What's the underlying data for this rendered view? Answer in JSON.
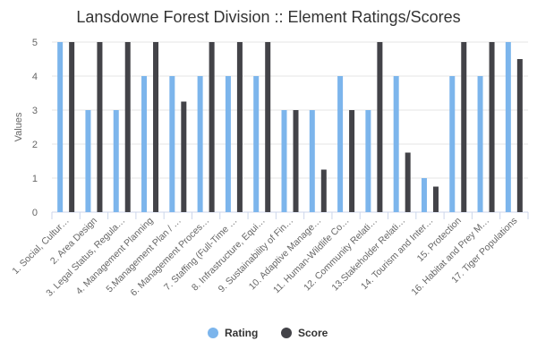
{
  "chart_data": {
    "type": "bar",
    "title": "Lansdowne Forest Division :: Element Ratings/Scores",
    "ylabel": "Values",
    "xlabel": "",
    "ylim": [
      0,
      5
    ],
    "yticks": [
      0,
      1,
      2,
      3,
      4,
      5
    ],
    "grid": true,
    "legend": "bottom-center",
    "categories": [
      "1. Social, Cultur…",
      "2. Area Design",
      "3. Legal Status, Regula…",
      "4. Management Planning",
      "5.Management Plan / …",
      "6. Management Proces…",
      "7. Staffing (Full-Time …",
      "8. Infrastructure, Equi…",
      "9. Sustainability of Fin…",
      "10. Adaptive Manage…",
      "11. Human-Wildlife Co…",
      "12. Community Relati…",
      "13.Stakeholder Relati…",
      "14. Tourism and Inter…",
      "15. Protection",
      "16. Habitat and Prey M…",
      "17. Tiger Populations"
    ],
    "series": [
      {
        "name": "Rating",
        "color": "#7cb5ec",
        "values": [
          5,
          3,
          3,
          4,
          4,
          4,
          4,
          4,
          3,
          3,
          4,
          3,
          4,
          1,
          4,
          4,
          5
        ]
      },
      {
        "name": "Score",
        "color": "#434348",
        "values": [
          5,
          5,
          5,
          5,
          3.25,
          5,
          5,
          5,
          3,
          1.25,
          3,
          5,
          1.75,
          0.75,
          5,
          5,
          4.5
        ]
      }
    ]
  }
}
